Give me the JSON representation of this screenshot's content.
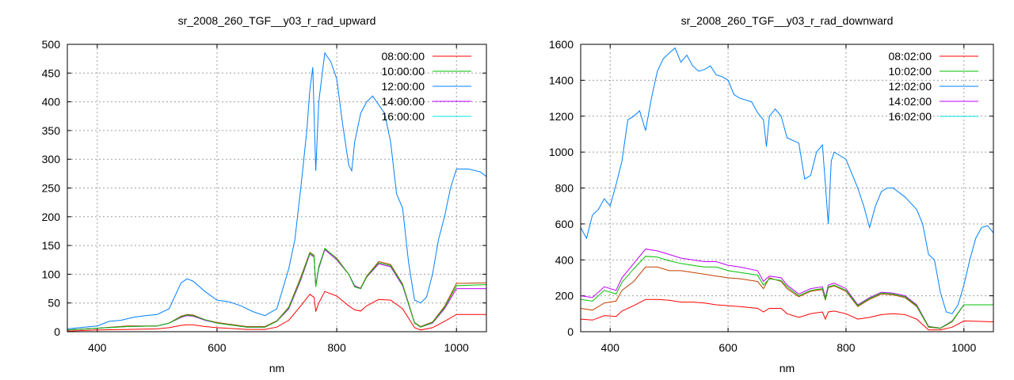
{
  "chart_data": [
    {
      "type": "line",
      "title": "sr_2008_260_TGF__y03_r_rad_upward",
      "xlabel": "nm",
      "ylabel": "",
      "xlim": [
        350,
        1050
      ],
      "ylim": [
        0,
        500
      ],
      "xticks": [
        400,
        600,
        800,
        1000
      ],
      "yticks": [
        0,
        50,
        100,
        150,
        200,
        250,
        300,
        350,
        400,
        450,
        500
      ],
      "grid": true,
      "legend_position": "top-right",
      "series": [
        {
          "name": "08:00:00",
          "color": "#ff0000",
          "line_color": "#ff0000",
          "x": [
            350,
            400,
            450,
            500,
            520,
            540,
            550,
            560,
            580,
            600,
            650,
            680,
            700,
            720,
            740,
            755,
            762,
            765,
            770,
            780,
            800,
            820,
            830,
            840,
            850,
            870,
            890,
            910,
            930,
            940,
            960,
            980,
            1000,
            1050
          ],
          "y": [
            1,
            3,
            4,
            5,
            7,
            11,
            12,
            12,
            9,
            7,
            4,
            4,
            8,
            20,
            45,
            65,
            60,
            35,
            50,
            70,
            62,
            45,
            38,
            36,
            45,
            56,
            55,
            40,
            7,
            3,
            7,
            18,
            30,
            30
          ]
        },
        {
          "name": "10:00:00",
          "color": "#00c000",
          "line_color": "#00c000",
          "x": [
            350,
            400,
            450,
            500,
            520,
            540,
            550,
            560,
            580,
            600,
            650,
            680,
            700,
            720,
            740,
            755,
            762,
            765,
            770,
            780,
            800,
            820,
            830,
            840,
            850,
            870,
            890,
            910,
            930,
            940,
            960,
            980,
            1000,
            1050
          ],
          "y": [
            3,
            6,
            9,
            10,
            15,
            26,
            29,
            28,
            21,
            15,
            8,
            8,
            18,
            42,
            92,
            137,
            132,
            78,
            112,
            145,
            127,
            100,
            78,
            75,
            96,
            120,
            115,
            82,
            15,
            8,
            16,
            42,
            80,
            82
          ]
        },
        {
          "name": "12:00:00",
          "color": "#0080ff",
          "line_color": "#0080ff",
          "x": [
            350,
            400,
            420,
            440,
            460,
            480,
            500,
            520,
            540,
            550,
            560,
            580,
            600,
            620,
            640,
            660,
            680,
            700,
            720,
            730,
            740,
            750,
            755,
            760,
            765,
            770,
            780,
            790,
            800,
            810,
            820,
            825,
            830,
            840,
            850,
            860,
            870,
            880,
            890,
            900,
            910,
            920,
            930,
            940,
            950,
            960,
            970,
            980,
            990,
            1000,
            1020,
            1040,
            1050
          ],
          "y": [
            5,
            10,
            18,
            20,
            25,
            28,
            30,
            40,
            85,
            92,
            88,
            70,
            55,
            52,
            45,
            35,
            28,
            40,
            110,
            160,
            250,
            350,
            420,
            460,
            280,
            400,
            485,
            470,
            440,
            360,
            290,
            280,
            330,
            380,
            400,
            410,
            395,
            380,
            330,
            240,
            215,
            120,
            55,
            50,
            60,
            100,
            160,
            200,
            250,
            283,
            283,
            278,
            270
          ]
        },
        {
          "name": "14:00:00",
          "color": "#c000ff",
          "line_color": "#c000ff",
          "x": [
            350,
            400,
            450,
            500,
            520,
            540,
            550,
            560,
            580,
            600,
            650,
            680,
            700,
            720,
            740,
            755,
            762,
            765,
            770,
            780,
            800,
            820,
            830,
            840,
            850,
            870,
            890,
            910,
            930,
            940,
            960,
            980,
            1000,
            1050
          ],
          "y": [
            3,
            6,
            9,
            10,
            15,
            25,
            28,
            27,
            20,
            15,
            8,
            8,
            18,
            40,
            90,
            135,
            130,
            80,
            110,
            143,
            125,
            100,
            80,
            75,
            95,
            118,
            113,
            80,
            15,
            8,
            15,
            40,
            75,
            75
          ]
        },
        {
          "name": "16:00:00",
          "color": "#00e0e0",
          "line_color": "#c04000",
          "x": [
            350,
            400,
            450,
            500,
            520,
            540,
            550,
            560,
            580,
            600,
            650,
            680,
            700,
            720,
            740,
            755,
            762,
            765,
            770,
            780,
            800,
            820,
            830,
            840,
            850,
            870,
            890,
            910,
            930,
            940,
            960,
            980,
            1000,
            1050
          ],
          "y": [
            3,
            6,
            10,
            10,
            15,
            27,
            30,
            29,
            21,
            16,
            9,
            9,
            19,
            43,
            95,
            138,
            133,
            79,
            113,
            144,
            128,
            100,
            79,
            76,
            97,
            122,
            117,
            83,
            16,
            9,
            17,
            44,
            84,
            85
          ]
        }
      ]
    },
    {
      "type": "line",
      "title": "sr_2008_260_TGF__y03_r_rad_downward",
      "xlabel": "nm",
      "ylabel": "",
      "xlim": [
        350,
        1050
      ],
      "ylim": [
        0,
        1600
      ],
      "xticks": [
        400,
        600,
        800,
        1000
      ],
      "yticks": [
        0,
        200,
        400,
        600,
        800,
        1000,
        1200,
        1400,
        1600
      ],
      "grid": true,
      "legend_position": "top-right",
      "series": [
        {
          "name": "08:02:00",
          "color": "#ff0000",
          "line_color": "#ff0000",
          "x": [
            350,
            370,
            390,
            410,
            420,
            440,
            460,
            480,
            500,
            520,
            540,
            560,
            580,
            600,
            620,
            650,
            660,
            670,
            690,
            700,
            720,
            740,
            760,
            765,
            770,
            780,
            800,
            820,
            840,
            860,
            880,
            900,
            920,
            940,
            960,
            980,
            1000,
            1050
          ],
          "y": [
            70,
            65,
            90,
            85,
            115,
            145,
            180,
            180,
            175,
            165,
            165,
            160,
            150,
            145,
            140,
            130,
            110,
            130,
            130,
            100,
            80,
            100,
            110,
            70,
            110,
            115,
            100,
            70,
            80,
            95,
            100,
            95,
            70,
            10,
            10,
            25,
            60,
            55
          ]
        },
        {
          "name": "10:02:00",
          "color": "#00c000",
          "line_color": "#00c000",
          "x": [
            350,
            370,
            390,
            410,
            420,
            440,
            460,
            480,
            500,
            520,
            540,
            560,
            580,
            600,
            620,
            650,
            660,
            670,
            690,
            700,
            720,
            740,
            760,
            765,
            770,
            780,
            800,
            820,
            840,
            860,
            880,
            900,
            920,
            940,
            960,
            980,
            1000,
            1050
          ],
          "y": [
            180,
            170,
            230,
            210,
            275,
            350,
            420,
            415,
            395,
            380,
            370,
            360,
            360,
            340,
            330,
            315,
            260,
            295,
            285,
            250,
            200,
            230,
            240,
            180,
            250,
            260,
            230,
            145,
            185,
            215,
            210,
            195,
            145,
            28,
            20,
            58,
            150,
            150
          ]
        },
        {
          "name": "12:02:00",
          "color": "#0080ff",
          "line_color": "#0080ff",
          "x": [
            350,
            360,
            370,
            380,
            390,
            400,
            410,
            420,
            430,
            440,
            450,
            460,
            470,
            480,
            490,
            500,
            510,
            520,
            530,
            540,
            550,
            560,
            570,
            580,
            590,
            600,
            610,
            620,
            640,
            650,
            660,
            665,
            670,
            680,
            690,
            700,
            720,
            730,
            740,
            750,
            760,
            765,
            770,
            775,
            780,
            800,
            820,
            830,
            840,
            850,
            860,
            870,
            880,
            900,
            920,
            930,
            940,
            950,
            960,
            970,
            980,
            990,
            1000,
            1010,
            1020,
            1030,
            1040,
            1050
          ],
          "y": [
            580,
            520,
            650,
            680,
            740,
            700,
            820,
            950,
            1180,
            1200,
            1230,
            1120,
            1300,
            1450,
            1520,
            1550,
            1580,
            1500,
            1540,
            1480,
            1450,
            1460,
            1480,
            1430,
            1420,
            1400,
            1320,
            1300,
            1280,
            1220,
            1180,
            1030,
            1200,
            1240,
            1200,
            1080,
            1050,
            850,
            870,
            1000,
            1040,
            820,
            600,
            950,
            1000,
            960,
            800,
            700,
            580,
            700,
            780,
            800,
            800,
            750,
            680,
            600,
            430,
            400,
            220,
            110,
            100,
            150,
            260,
            400,
            520,
            580,
            590,
            550
          ]
        },
        {
          "name": "14:02:00",
          "color": "#c000ff",
          "line_color": "#c000ff",
          "x": [
            350,
            370,
            390,
            410,
            420,
            440,
            460,
            480,
            500,
            520,
            540,
            560,
            580,
            600,
            620,
            650,
            660,
            670,
            690,
            700,
            720,
            740,
            760,
            765,
            770,
            780,
            800,
            820,
            840,
            860,
            880,
            900,
            920,
            940,
            960,
            980,
            1000,
            1050
          ],
          "y": [
            200,
            190,
            250,
            230,
            300,
            380,
            460,
            450,
            430,
            410,
            400,
            390,
            390,
            370,
            360,
            340,
            280,
            310,
            300,
            260,
            210,
            240,
            250,
            190,
            260,
            270,
            240,
            150,
            190,
            220,
            215,
            200,
            150,
            30,
            20,
            60,
            150,
            150
          ]
        },
        {
          "name": "16:02:00",
          "color": "#00e0e0",
          "line_color": "#c04000",
          "x": [
            350,
            370,
            390,
            410,
            420,
            440,
            460,
            480,
            500,
            520,
            540,
            560,
            580,
            600,
            620,
            650,
            660,
            670,
            690,
            700,
            720,
            740,
            760,
            765,
            770,
            780,
            800,
            820,
            840,
            860,
            880,
            900,
            920,
            940,
            960,
            980,
            1000,
            1050
          ],
          "y": [
            130,
            120,
            160,
            170,
            230,
            280,
            360,
            360,
            340,
            340,
            330,
            320,
            310,
            300,
            295,
            280,
            240,
            300,
            280,
            240,
            195,
            225,
            235,
            175,
            245,
            255,
            225,
            140,
            180,
            210,
            205,
            190,
            140,
            25,
            18,
            55,
            150,
            150
          ]
        }
      ]
    }
  ]
}
